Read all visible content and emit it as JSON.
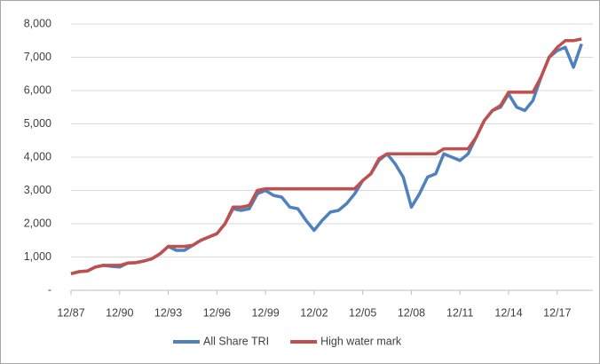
{
  "chart_data": {
    "type": "line",
    "categories": [
      "12/87",
      null,
      null,
      null,
      null,
      null,
      "12/90",
      null,
      null,
      null,
      null,
      null,
      "12/93",
      null,
      null,
      null,
      null,
      null,
      "12/96",
      null,
      null,
      null,
      null,
      null,
      "12/99",
      null,
      null,
      null,
      null,
      null,
      "12/02",
      null,
      null,
      null,
      null,
      null,
      "12/05",
      null,
      null,
      null,
      null,
      null,
      "12/08",
      null,
      null,
      null,
      null,
      null,
      "12/11",
      null,
      null,
      null,
      null,
      null,
      "12/14",
      null,
      null,
      null,
      null,
      null,
      "12/17",
      null,
      null,
      null
    ],
    "series": [
      {
        "name": "All Share TRI",
        "color": "#4e81bd",
        "values": [
          500,
          560,
          580,
          700,
          750,
          720,
          700,
          820,
          830,
          880,
          950,
          1100,
          1320,
          1200,
          1200,
          1350,
          1500,
          1600,
          1700,
          2000,
          2450,
          2400,
          2450,
          2900,
          3000,
          2850,
          2800,
          2500,
          2450,
          2100,
          1800,
          2100,
          2350,
          2400,
          2600,
          2900,
          3300,
          3500,
          3900,
          4100,
          3800,
          3400,
          2500,
          2900,
          3400,
          3500,
          4100,
          4000,
          3900,
          4100,
          4600,
          5100,
          5400,
          5500,
          5900,
          5500,
          5400,
          5700,
          6400,
          7000,
          7200,
          7300,
          6700,
          7400
        ]
      },
      {
        "name": "High water mark",
        "color": "#c0504d",
        "values": [
          500,
          560,
          580,
          700,
          750,
          750,
          750,
          820,
          830,
          880,
          950,
          1100,
          1320,
          1320,
          1320,
          1350,
          1500,
          1600,
          1700,
          2000,
          2500,
          2500,
          2550,
          3000,
          3050,
          3050,
          3050,
          3050,
          3050,
          3050,
          3050,
          3050,
          3050,
          3050,
          3050,
          3050,
          3300,
          3500,
          3950,
          4100,
          4100,
          4100,
          4100,
          4100,
          4100,
          4100,
          4250,
          4250,
          4250,
          4250,
          4600,
          5100,
          5400,
          5550,
          5950,
          5950,
          5950,
          5950,
          6400,
          7000,
          7300,
          7500,
          7500,
          7550
        ]
      }
    ],
    "ylim": [
      0,
      8000
    ],
    "yticks": [
      {
        "value": 0,
        "label": "-"
      },
      {
        "value": 1000,
        "label": "1,000"
      },
      {
        "value": 2000,
        "label": "2,000"
      },
      {
        "value": 3000,
        "label": "3,000"
      },
      {
        "value": 4000,
        "label": "4,000"
      },
      {
        "value": 5000,
        "label": "5,000"
      },
      {
        "value": 6000,
        "label": "6,000"
      },
      {
        "value": 7000,
        "label": "7,000"
      },
      {
        "value": 8000,
        "label": "8,000"
      }
    ],
    "grid": true,
    "legend": "bottom"
  }
}
